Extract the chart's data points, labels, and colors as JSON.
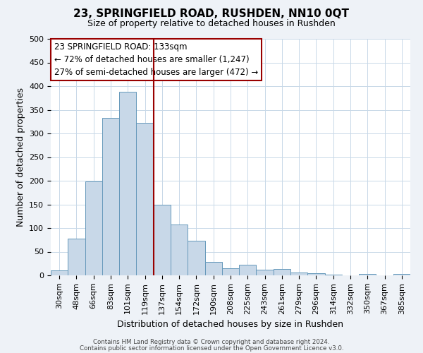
{
  "title": "23, SPRINGFIELD ROAD, RUSHDEN, NN10 0QT",
  "subtitle": "Size of property relative to detached houses in Rushden",
  "xlabel": "Distribution of detached houses by size in Rushden",
  "ylabel": "Number of detached properties",
  "bar_labels": [
    "30sqm",
    "48sqm",
    "66sqm",
    "83sqm",
    "101sqm",
    "119sqm",
    "137sqm",
    "154sqm",
    "172sqm",
    "190sqm",
    "208sqm",
    "225sqm",
    "243sqm",
    "261sqm",
    "279sqm",
    "296sqm",
    "314sqm",
    "332sqm",
    "350sqm",
    "367sqm",
    "385sqm"
  ],
  "bar_values": [
    10,
    78,
    198,
    333,
    388,
    322,
    150,
    107,
    73,
    28,
    15,
    22,
    12,
    13,
    6,
    4,
    1,
    0,
    3,
    0,
    3
  ],
  "bar_color": "#c8d8e8",
  "bar_edge_color": "#6699bb",
  "vline_color": "#990000",
  "ylim": [
    0,
    500
  ],
  "annotation_title": "23 SPRINGFIELD ROAD: 133sqm",
  "annotation_line1": "← 72% of detached houses are smaller (1,247)",
  "annotation_line2": "27% of semi-detached houses are larger (472) →",
  "annotation_box_color": "#990000",
  "footer1": "Contains HM Land Registry data © Crown copyright and database right 2024.",
  "footer2": "Contains public sector information licensed under the Open Government Licence v3.0.",
  "bg_color": "#eef2f7",
  "plot_bg_color": "#ffffff",
  "grid_color": "#c8d8e8",
  "title_fontsize": 11,
  "subtitle_fontsize": 9,
  "ylabel_fontsize": 9,
  "xlabel_fontsize": 9,
  "tick_fontsize": 8,
  "annot_fontsize": 8.5
}
